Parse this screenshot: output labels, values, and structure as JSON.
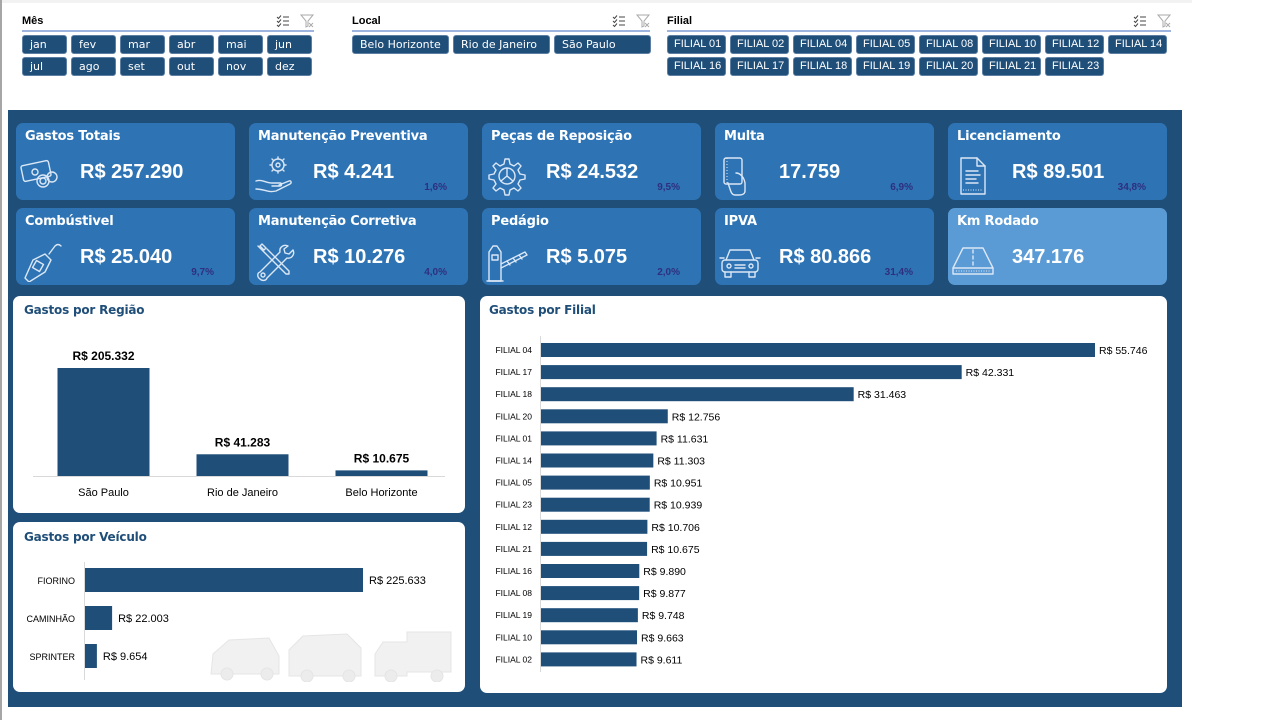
{
  "slicers": {
    "mes": {
      "title": "Mês",
      "items": [
        "jan",
        "fev",
        "mar",
        "abr",
        "mai",
        "jun",
        "jul",
        "ago",
        "set",
        "out",
        "nov",
        "dez"
      ]
    },
    "local": {
      "title": "Local",
      "items": [
        "Belo Horizonte",
        "Rio de Janeiro",
        "São Paulo"
      ]
    },
    "filial": {
      "title": "Filial",
      "items": [
        "FILIAL 01",
        "FILIAL 02",
        "FILIAL 04",
        "FILIAL 05",
        "FILIAL 08",
        "FILIAL 10",
        "FILIAL 12",
        "FILIAL 14",
        "FILIAL 16",
        "FILIAL 17",
        "FILIAL 18",
        "FILIAL 19",
        "FILIAL 20",
        "FILIAL 21",
        "FILIAL 23"
      ]
    },
    "icons": [
      "multi-select-icon",
      "clear-filter-icon"
    ]
  },
  "kpis": [
    {
      "title": "Gastos Totais",
      "value": "R$ 257.290",
      "pct": "",
      "icon": "money-coins-icon"
    },
    {
      "title": "Manutenção Preventiva",
      "value": "R$ 4.241",
      "pct": "1,6%",
      "icon": "gear-hand-icon"
    },
    {
      "title": "Peças de Reposição",
      "value": "R$ 24.532",
      "pct": "9,5%",
      "icon": "gear-parts-icon"
    },
    {
      "title": "Multa",
      "value": "17.759",
      "pct": "6,9%",
      "icon": "ticket-hand-icon"
    },
    {
      "title": "Licenciamento",
      "value": "R$ 89.501",
      "pct": "34,8%",
      "icon": "document-icon"
    },
    {
      "title": "Combústivel",
      "value": "R$ 25.040",
      "pct": "9,7%",
      "icon": "fuel-nozzle-icon"
    },
    {
      "title": "Manutenção Corretiva",
      "value": "R$ 10.276",
      "pct": "4,0%",
      "icon": "wrench-screwdriver-icon"
    },
    {
      "title": "Pedágio",
      "value": "R$ 5.075",
      "pct": "2,0%",
      "icon": "toll-gate-icon"
    },
    {
      "title": "IPVA",
      "value": "R$ 80.866",
      "pct": "31,4%",
      "icon": "car-icon"
    },
    {
      "title": "Km Rodado",
      "value": "347.176",
      "pct": "",
      "icon": "road-icon"
    }
  ],
  "chart_data": [
    {
      "type": "bar",
      "title": "Gastos por Região",
      "categories": [
        "São Paulo",
        "Rio de Janeiro",
        "Belo Horizonte"
      ],
      "values": [
        205332,
        41283,
        10675
      ],
      "labels": [
        "R$ 205.332",
        "R$ 41.283",
        "R$ 10.675"
      ],
      "xlabel": "",
      "ylabel": "",
      "grid": false,
      "legend": "none",
      "color": "#1f4e79"
    },
    {
      "type": "bar",
      "orientation": "horizontal",
      "title": "Gastos por Veículo",
      "categories": [
        "FIORINO",
        "CAMINHÃO",
        "SPRINTER"
      ],
      "values": [
        225633,
        22003,
        9654
      ],
      "labels": [
        "R$ 225.633",
        "R$ 22.003",
        "R$ 9.654"
      ],
      "grid": false,
      "legend": "none",
      "color": "#1f4e79"
    },
    {
      "type": "bar",
      "orientation": "horizontal",
      "title": "Gastos por Filial",
      "categories": [
        "FILIAL 04",
        "FILIAL 17",
        "FILIAL 18",
        "FILIAL 20",
        "FILIAL 01",
        "FILIAL 14",
        "FILIAL 05",
        "FILIAL 23",
        "FILIAL 12",
        "FILIAL 21",
        "FILIAL 16",
        "FILIAL 08",
        "FILIAL 19",
        "FILIAL 10",
        "FILIAL 02"
      ],
      "values": [
        55746,
        42331,
        31463,
        12756,
        11631,
        11303,
        10951,
        10939,
        10706,
        10675,
        9890,
        9877,
        9748,
        9663,
        9611
      ],
      "labels": [
        "R$ 55.746",
        "R$ 42.331",
        "R$ 31.463",
        "R$ 12.756",
        "R$ 11.631",
        "R$ 11.303",
        "R$ 10.951",
        "R$ 10.939",
        "R$ 10.706",
        "R$ 10.675",
        "R$ 9.890",
        "R$ 9.877",
        "R$ 9.748",
        "R$ 9.663",
        "R$ 9.611"
      ],
      "grid": false,
      "legend": "none",
      "color": "#1f4e79"
    }
  ],
  "colors": {
    "panel": "#1f4e79",
    "kpi": "#2e74b5",
    "kpi_highlight": "#5b9bd5",
    "bar": "#1f4e79",
    "pct_text": "#2f2f7f"
  }
}
